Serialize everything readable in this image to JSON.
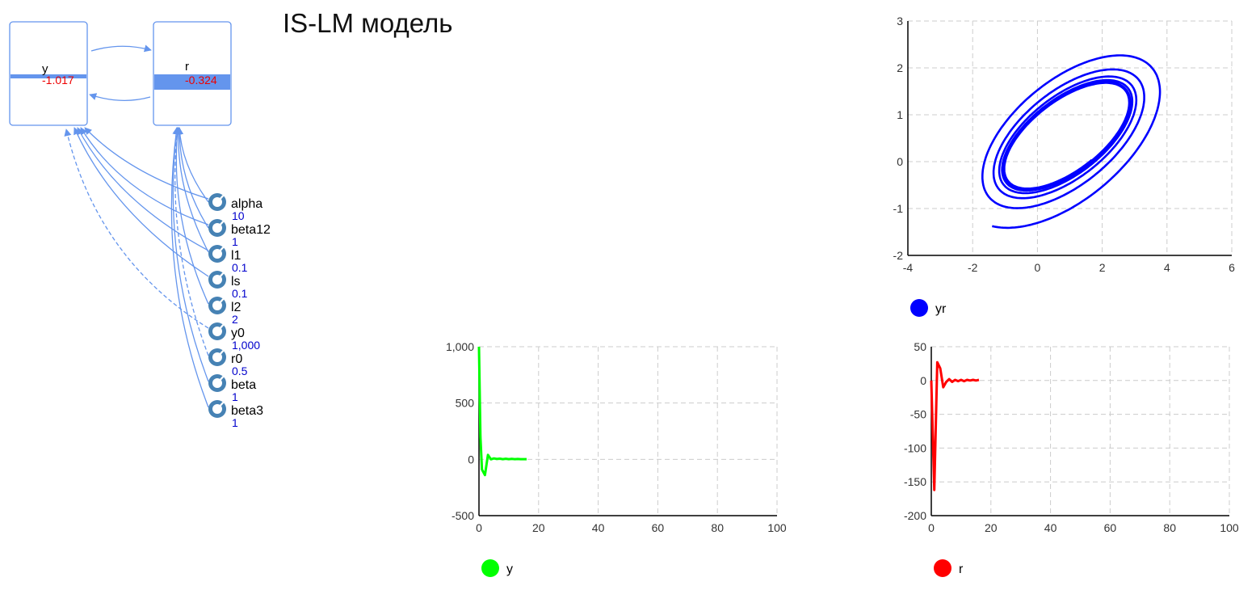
{
  "title": "IS-LM модель",
  "diagram": {
    "stocks": [
      {
        "id": "y",
        "name": "y",
        "value": "-1.017",
        "level": 0.04
      },
      {
        "id": "r",
        "name": "r",
        "value": "-0.324",
        "level": 0.15
      }
    ],
    "params": [
      {
        "name": "alpha",
        "value": "10"
      },
      {
        "name": "beta12",
        "value": "1"
      },
      {
        "name": "l1",
        "value": "0.1"
      },
      {
        "name": "ls",
        "value": "0.1"
      },
      {
        "name": "l2",
        "value": "2"
      },
      {
        "name": "y0",
        "value": "1,000"
      },
      {
        "name": "r0",
        "value": "0.5"
      },
      {
        "name": "beta",
        "value": "1"
      },
      {
        "name": "beta3",
        "value": "1"
      }
    ],
    "colors": {
      "box": "#6495ed",
      "arrow": "#6495ed",
      "icon": "#4682b4",
      "value": "#ff0000",
      "param_value": "#0000cc"
    }
  },
  "chart_data": [
    {
      "type": "line",
      "series": [
        {
          "name": "yr",
          "color": "#0000ff"
        }
      ],
      "xlim": [
        -4,
        6
      ],
      "ylim": [
        -2,
        3
      ],
      "xticks": [
        "-4",
        "-2",
        "0",
        "2",
        "4",
        "6"
      ],
      "yticks": [
        "-2",
        "-1",
        "0",
        "1",
        "2",
        "3"
      ],
      "grid": true,
      "legend": "bottom-left"
    },
    {
      "type": "line",
      "series": [
        {
          "name": "y",
          "color": "#00ff00",
          "x": [
            0,
            0.5,
            1,
            2,
            3,
            4,
            5,
            6,
            7,
            8,
            9,
            10,
            11,
            12,
            13,
            14,
            15,
            16
          ],
          "y": [
            1000,
            200,
            -90,
            -140,
            40,
            0,
            8,
            3,
            6,
            2,
            5,
            2,
            4,
            2,
            3,
            2,
            2,
            2
          ]
        }
      ],
      "xlim": [
        0,
        100
      ],
      "ylim": [
        -500,
        1000
      ],
      "xticks": [
        "0",
        "20",
        "40",
        "60",
        "80",
        "100"
      ],
      "yticks": [
        "-500",
        "0",
        "500",
        "1,000"
      ],
      "grid": true,
      "legend": "bottom-left"
    },
    {
      "type": "line",
      "series": [
        {
          "name": "r",
          "color": "#ff0000",
          "x": [
            0,
            1,
            2,
            3,
            4,
            5,
            6,
            7,
            8,
            9,
            10,
            11,
            12,
            13,
            14,
            15,
            16
          ],
          "y": [
            0,
            -162,
            27,
            18,
            -10,
            -2,
            2,
            -2,
            1,
            -1,
            1,
            -1,
            1,
            0,
            1,
            0,
            1
          ]
        }
      ],
      "xlim": [
        0,
        100
      ],
      "ylim": [
        -200,
        50
      ],
      "xticks": [
        "0",
        "20",
        "40",
        "60",
        "80",
        "100"
      ],
      "yticks": [
        "-200",
        "-150",
        "-100",
        "-50",
        "0",
        "50"
      ],
      "grid": true,
      "legend": "bottom-left"
    }
  ]
}
